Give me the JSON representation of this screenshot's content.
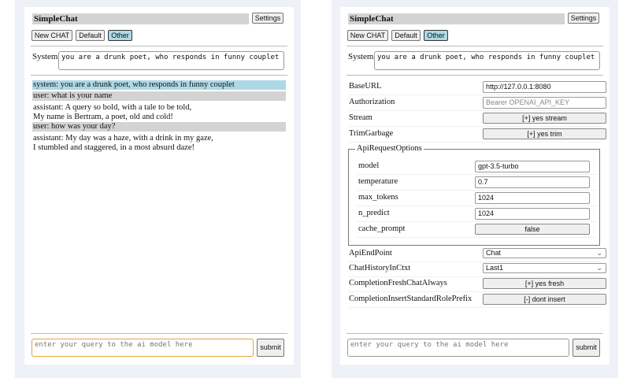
{
  "app_title": "SimpleChat",
  "settings_label": "Settings",
  "chat_buttons": [
    "New CHAT",
    "Default",
    "Other"
  ],
  "selected_chat": "Other",
  "system_label": "System",
  "system_prompt": "you are a drunk poet, who responds in funny couplet",
  "messages": [
    {
      "role": "system",
      "lines": [
        "system: you are a drunk poet, who responds in funny couplet"
      ]
    },
    {
      "role": "user",
      "lines": [
        "user: what is your name"
      ]
    },
    {
      "role": "assistant",
      "lines": [
        "assistant: A query so bold, with a tale to be told,",
        "My name is Bertram, a poet, old and cold!"
      ]
    },
    {
      "role": "user",
      "lines": [
        "user: how was your day?"
      ]
    },
    {
      "role": "assistant",
      "lines": [
        "assistant: My day was a haze, with a drink in my gaze,",
        "I stumbled and staggered, in a most absurd daze!"
      ]
    }
  ],
  "query_placeholder": "enter your query to the ai model here",
  "submit_label": "submit",
  "settings": {
    "base_url": {
      "label": "BaseURL",
      "value": "http://127.0.0.1:8080"
    },
    "authorization": {
      "label": "Authorization",
      "placeholder": "Bearer OPENAI_API_KEY"
    },
    "stream": {
      "label": "Stream",
      "value": "[+] yes stream"
    },
    "trim_garbage": {
      "label": "TrimGarbage",
      "value": "[+] yes trim"
    },
    "api_request_options": {
      "legend": "ApiRequestOptions",
      "model": {
        "label": "model",
        "value": "gpt-3.5-turbo"
      },
      "temperature": {
        "label": "temperature",
        "value": "0.7"
      },
      "max_tokens": {
        "label": "max_tokens",
        "value": "1024"
      },
      "n_predict": {
        "label": "n_predict",
        "value": "1024"
      },
      "cache_prompt": {
        "label": "cache_prompt",
        "value": "false"
      }
    },
    "api_endpoint": {
      "label": "ApiEndPoint",
      "value": "Chat"
    },
    "chat_history": {
      "label": "ChatHistoryInCtxt",
      "value": "Last1"
    },
    "fresh_chat": {
      "label": "CompletionFreshChatAlways",
      "value": "[+] yes fresh"
    },
    "insert_prefix": {
      "label": "CompletionInsertStandardRolePrefix",
      "value": "[-] dont insert"
    }
  },
  "colors": {
    "selected": "#add8e6",
    "user_bg": "#d3d3d3",
    "focus": "#e6a23c"
  }
}
